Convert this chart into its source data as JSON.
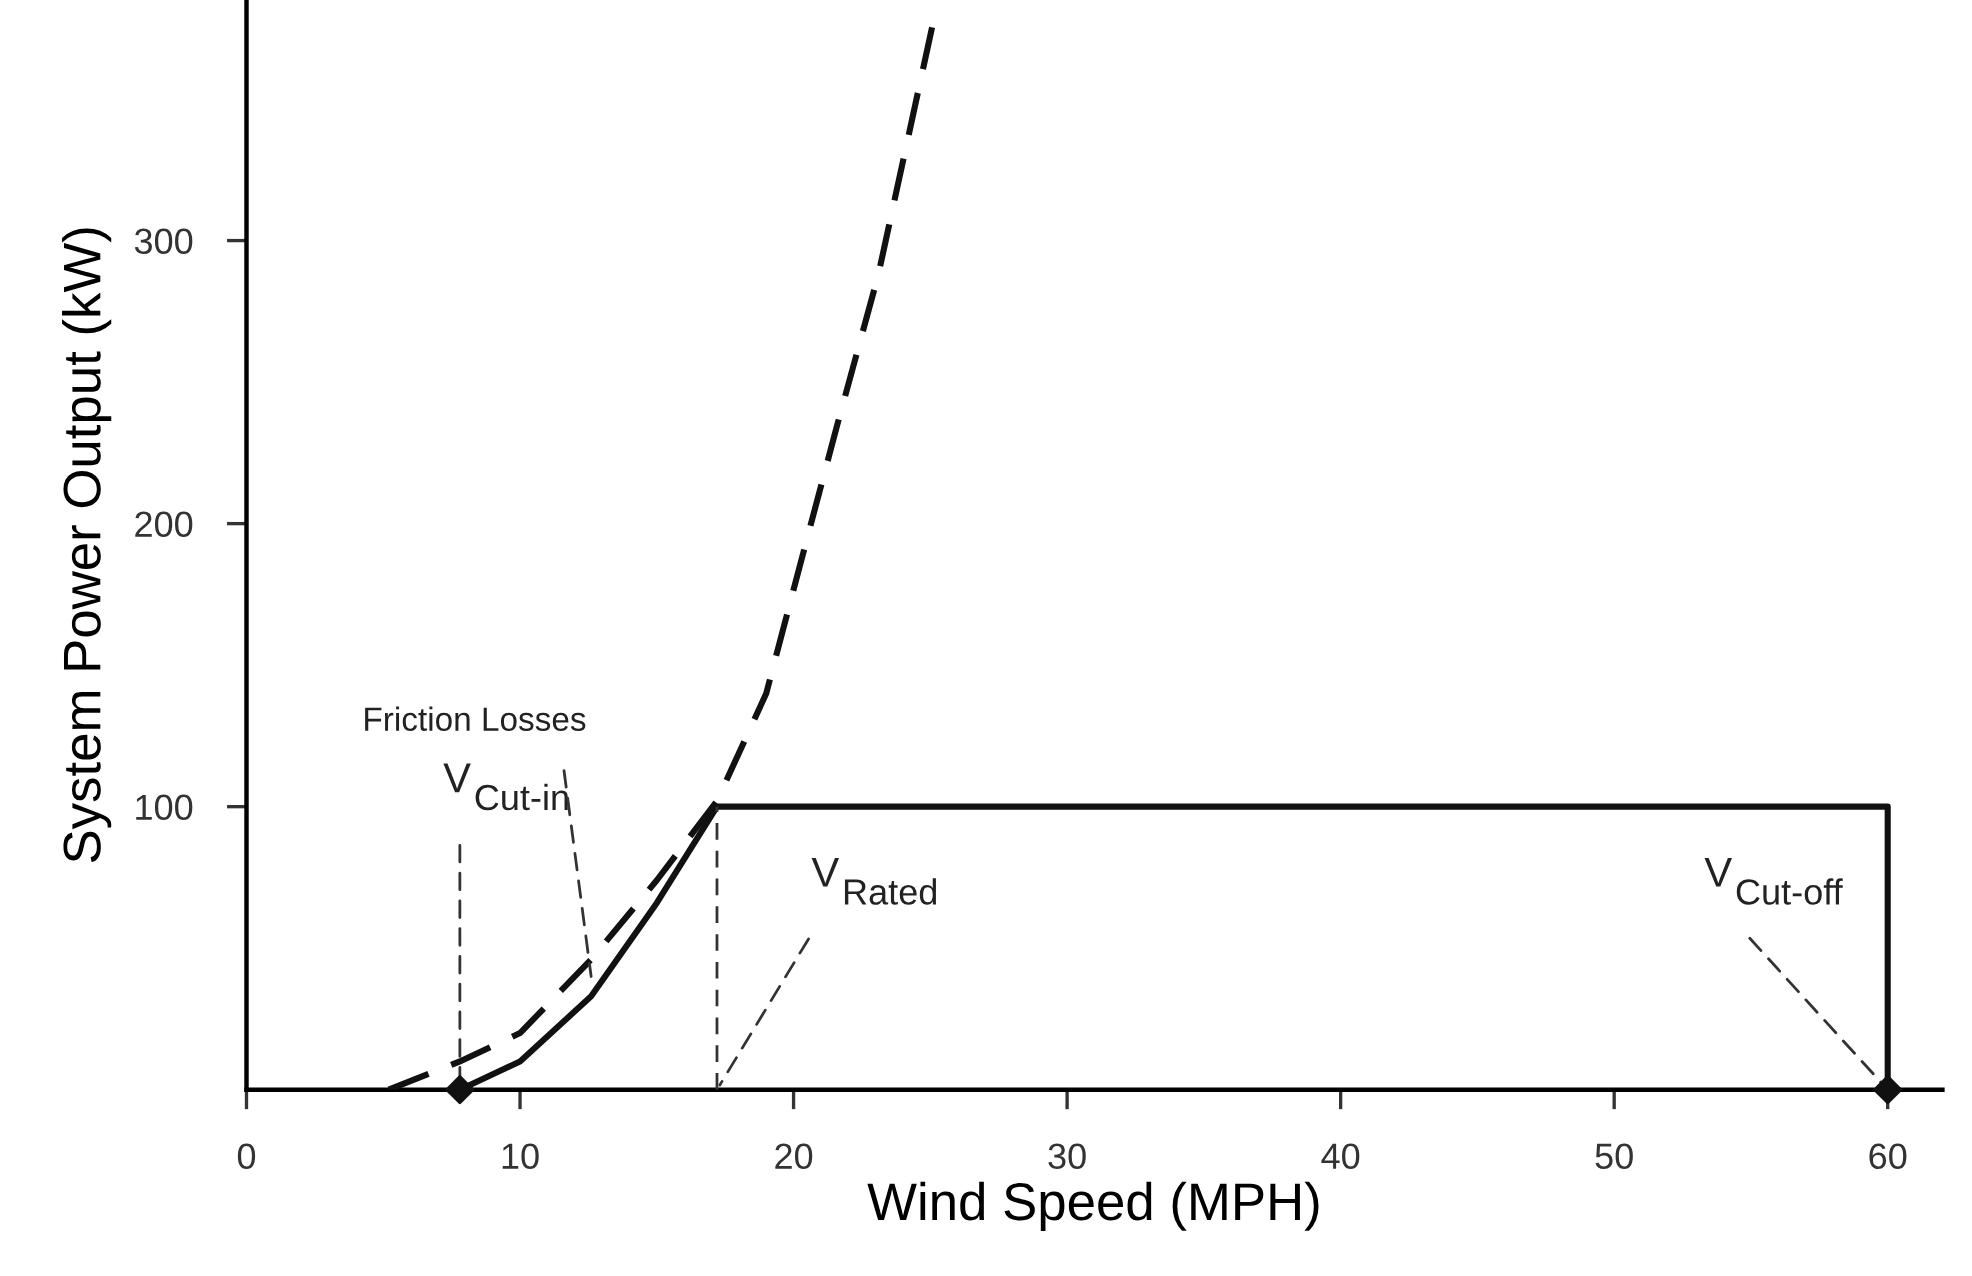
{
  "chart_data": {
    "type": "line",
    "xlabel": "Wind Speed (MPH)",
    "ylabel": "System Power Output (kW)",
    "xlim": [
      0,
      62
    ],
    "ylim": [
      0,
      385
    ],
    "xticks": [
      0,
      10,
      20,
      30,
      40,
      50,
      60
    ],
    "yticks": [
      100,
      200,
      300
    ],
    "grid": false,
    "legend": false,
    "series": [
      {
        "line_style": "dashed",
        "color": "#111111",
        "x": [
          5.2,
          7.8,
          10,
          12.6,
          15,
          17.2,
          19,
          20.5,
          21.6,
          23.1,
          25.1
        ],
        "values": [
          0,
          10,
          20,
          46,
          74,
          102,
          140,
          195,
          235,
          288,
          377
        ]
      },
      {
        "line_style": "solid",
        "color": "#111111",
        "x": [
          7.8,
          10,
          12.6,
          15,
          17.2,
          60,
          60
        ],
        "values": [
          0,
          10,
          33,
          66,
          100,
          100,
          0
        ]
      },
      {
        "line_style": "dashed",
        "color": "#333333",
        "x": [
          17.2,
          17.2
        ],
        "values": [
          0,
          100
        ]
      },
      {
        "type": "scatter",
        "marker": "diamond",
        "color": "#111111",
        "x": [
          7.8,
          60
        ],
        "values": [
          0,
          0
        ]
      }
    ],
    "annotations": [
      {
        "text": "V$_{Cut-in}$",
        "x": 7.8,
        "y": 0
      },
      {
        "text": "Friction Losses",
        "x": 12.6,
        "y": 40
      },
      {
        "text": "V$_{Rated}$",
        "x": 17.2,
        "y": 0
      },
      {
        "text": "V$_{Cut-off}$",
        "x": 60,
        "y": 0
      }
    ]
  }
}
